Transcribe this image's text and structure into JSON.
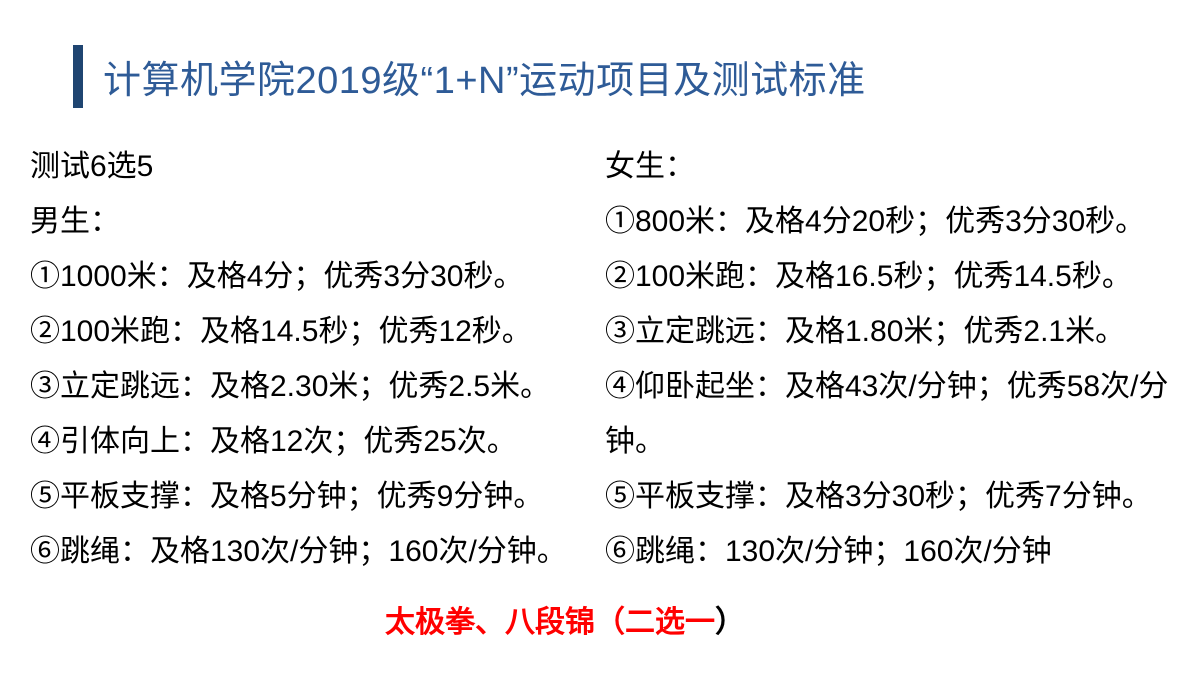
{
  "slide": {
    "title": "计算机学院2019级“1+N”运动项目及测试标准"
  },
  "colors": {
    "title_blue": "#2E5B97",
    "accent_bar_blue": "#1F4571",
    "highlight_red": "#FF0000",
    "body_text": "#000000",
    "background": "#FFFFFF"
  },
  "left_column": {
    "heading": "测试6选5",
    "subheading": "男生：",
    "items": [
      "①1000米：及格4分；优秀3分30秒。",
      "②100米跑：及格14.5秒；优秀12秒。",
      "③立定跳远：及格2.30米；优秀2.5米。",
      "④引体向上：及格12次；优秀25次。",
      "⑤平板支撑：及格5分钟；优秀9分钟。",
      "⑥跳绳：及格130次/分钟；160次/分钟。"
    ]
  },
  "right_column": {
    "subheading": "女生：",
    "items": [
      "①800米：及格4分20秒；优秀3分30秒。",
      "②100米跑：及格16.5秒；优秀14.5秒。",
      "③立定跳远：及格1.80米；优秀2.1米。",
      "④仰卧起坐：及格43次/分钟；优秀58次/分钟。",
      "⑤平板支撑：及格3分30秒；优秀7分钟。",
      "⑥跳绳：130次/分钟；160次/分钟"
    ]
  },
  "footer": {
    "red_text": "太极拳、八段锦（二选一",
    "black_paren": "）"
  }
}
